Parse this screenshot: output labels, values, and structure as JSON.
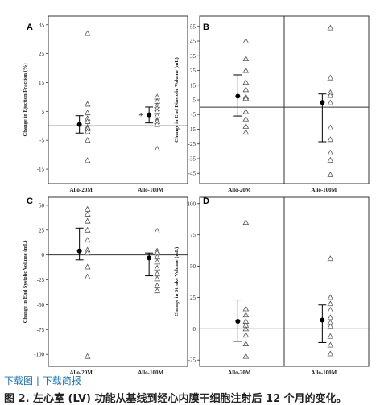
{
  "links": {
    "download_image": "下载图",
    "separator": "|",
    "download_ppt": "下载简报"
  },
  "caption": "图 2. 左心室 (LV) 功能从基线到经心内膜干细胞注射后 12 个月的变化。",
  "colors": {
    "axis": "#333333",
    "marker_open": "#555555",
    "mean": "#000000"
  },
  "chart_data": [
    {
      "type": "scatter",
      "panel_label": "A",
      "ylabel": "Change in Ejection Fraction (%)",
      "ylim": [
        -20,
        38
      ],
      "yticks": [
        35,
        25,
        15,
        5,
        -5,
        -15
      ],
      "categories": [
        "Allo-20M",
        "Allo-100M"
      ],
      "points": [
        [
          32,
          7.5,
          4.5,
          2.5,
          1.5,
          -0.5,
          -1,
          -2,
          -5,
          -12
        ],
        [
          10,
          8.5,
          7,
          6,
          5,
          3.5,
          2,
          1.5,
          0.5,
          -8
        ]
      ],
      "mean": [
        0.5,
        3.8
      ],
      "error": [
        [
          -2.5,
          3.5
        ],
        [
          1,
          6.5
        ]
      ],
      "annotations": [
        {
          "group": 1,
          "text": "*"
        }
      ]
    },
    {
      "type": "scatter",
      "panel_label": "B",
      "ylabel": "Change in End Diastolic Volume (mL)",
      "ylim": [
        -52,
        62
      ],
      "yticks": [
        55,
        45,
        35,
        25,
        15,
        5,
        -5,
        -15,
        -25,
        -35,
        -45
      ],
      "categories": [
        "Allo-20M",
        "Allo-100M"
      ],
      "points": [
        [
          45,
          33,
          25,
          17,
          12,
          7,
          6,
          -3,
          -8,
          -13,
          -17
        ],
        [
          54,
          20,
          10,
          8,
          3,
          -14,
          -22,
          -31,
          -36,
          -46
        ]
      ],
      "mean": [
        7.5,
        3.2
      ],
      "error": [
        [
          -6,
          22
        ],
        [
          -23.5,
          9
        ]
      ]
    },
    {
      "type": "scatter",
      "panel_label": "C",
      "ylabel": "Change in End Systolic Volume (mL)",
      "ylim": [
        -112,
        58
      ],
      "yticks": [
        50,
        25,
        0,
        -25,
        -50,
        -75,
        -100
      ],
      "categories": [
        "Allo-20M",
        "Allo-100M"
      ],
      "points": [
        [
          46,
          41,
          34,
          25,
          15,
          5,
          2,
          -12,
          -22,
          -102
        ],
        [
          24,
          4,
          2,
          -2,
          -7,
          -13,
          -19,
          -24,
          -31,
          -36
        ]
      ],
      "mean": [
        4,
        -3
      ],
      "error": [
        [
          -5,
          27
        ],
        [
          -21,
          2
        ]
      ]
    },
    {
      "type": "scatter",
      "panel_label": "D",
      "ylabel": "Change in Stroke Volume (mL)",
      "ylim": [
        -30,
        105
      ],
      "yticks": [
        100,
        75,
        50,
        25,
        0,
        -25
      ],
      "categories": [
        "Allo-20M",
        "Allo-100M"
      ],
      "points": [
        [
          85,
          16,
          11,
          6,
          3,
          0,
          -5,
          -12,
          -22
        ],
        [
          56,
          25,
          20,
          15,
          9,
          5,
          2,
          -6,
          -13,
          -20
        ]
      ],
      "mean": [
        6,
        7
      ],
      "error": [
        [
          -10,
          23
        ],
        [
          -11,
          19
        ]
      ]
    }
  ]
}
